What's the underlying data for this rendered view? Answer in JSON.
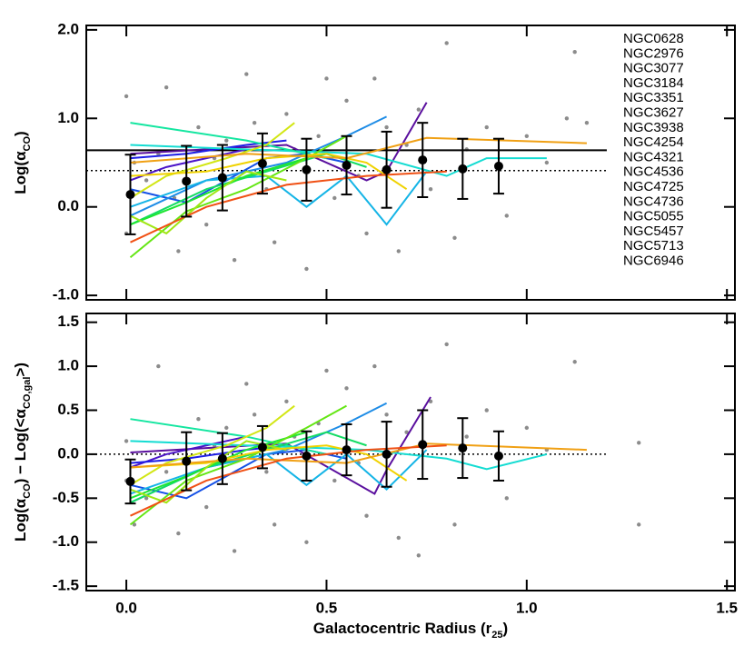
{
  "chart_data": [
    {
      "type": "line",
      "ylabel": [
        "Log(α",
        "CO",
        ")"
      ],
      "xlim": [
        -0.1,
        1.52
      ],
      "ylim": [
        -1.05,
        2.05
      ],
      "xticks": [
        0,
        0.5,
        1,
        1.5
      ],
      "yticks": [
        {
          "value": 2,
          "label": "2.0"
        },
        {
          "value": 1,
          "label": "1.0"
        },
        {
          "value": 0,
          "label": "0.0"
        },
        {
          "value": -1,
          "label": "-1.0"
        }
      ],
      "hlines": [
        {
          "y": 0.64,
          "style": "solid",
          "xmax": 1.2
        },
        {
          "y": 0.41,
          "style": "dotted",
          "xmax": 1.2
        }
      ],
      "points": {
        "color": "#8c8c8c",
        "x": [
          0.0,
          0.0,
          0.02,
          0.05,
          0.08,
          0.1,
          0.12,
          0.13,
          0.18,
          0.2,
          0.22,
          0.25,
          0.27,
          0.3,
          0.32,
          0.35,
          0.37,
          0.4,
          0.42,
          0.45,
          0.48,
          0.5,
          0.52,
          0.55,
          0.58,
          0.6,
          0.62,
          0.65,
          0.68,
          0.7,
          0.73,
          0.76,
          0.8,
          0.82,
          0.85,
          0.9,
          0.95,
          1.0,
          1.05,
          1.1,
          1.15,
          1.12
        ],
        "values": [
          1.25,
          -0.3,
          0.5,
          0.3,
          0.6,
          1.35,
          0.1,
          -0.5,
          0.9,
          -0.2,
          0.55,
          0.75,
          -0.6,
          1.5,
          0.95,
          0.2,
          -0.4,
          1.05,
          0.65,
          -0.7,
          0.8,
          1.45,
          0.1,
          1.2,
          0.35,
          -0.3,
          1.45,
          0.9,
          -0.5,
          0.7,
          1.1,
          0.2,
          1.85,
          -0.35,
          0.65,
          0.9,
          -0.1,
          0.8,
          0.5,
          1.0,
          0.95,
          1.75
        ]
      },
      "means": {
        "color": "#000000",
        "x": [
          0.01,
          0.15,
          0.24,
          0.34,
          0.45,
          0.55,
          0.65,
          0.74,
          0.84,
          0.93
        ],
        "values": [
          0.14,
          0.29,
          0.33,
          0.49,
          0.42,
          0.47,
          0.42,
          0.53,
          0.43,
          0.46
        ],
        "errors": [
          0.45,
          0.4,
          0.37,
          0.34,
          0.35,
          0.33,
          0.43,
          0.42,
          0.34,
          0.31
        ]
      },
      "series": [
        {
          "name": "NGC0628",
          "color": "#5a0f9e",
          "x": [
            0.01,
            0.2,
            0.4,
            0.6,
            0.65,
            0.75
          ],
          "values": [
            0.6,
            0.65,
            0.7,
            0.3,
            0.4,
            1.18
          ]
        },
        {
          "name": "NGC2976",
          "color": "#4b14c8",
          "x": [
            0.01,
            0.1,
            0.2,
            0.3
          ],
          "values": [
            0.3,
            0.45,
            0.55,
            0.65
          ]
        },
        {
          "name": "NGC3077",
          "color": "#1e1ee6",
          "x": [
            0.01,
            0.15,
            0.3,
            0.4
          ],
          "values": [
            0.55,
            0.6,
            0.7,
            0.75
          ]
        },
        {
          "name": "NGC3184",
          "color": "#1450e6",
          "x": [
            0.01,
            0.15,
            0.25,
            0.35,
            0.45,
            0.55
          ],
          "values": [
            0.2,
            0.05,
            0.3,
            0.55,
            0.6,
            0.5
          ]
        },
        {
          "name": "NGC3351",
          "color": "#1e8ce6",
          "x": [
            0.01,
            0.2,
            0.4,
            0.55,
            0.65
          ],
          "values": [
            -0.1,
            0.3,
            0.5,
            0.8,
            1.02
          ]
        },
        {
          "name": "NGC3627",
          "color": "#14b4e6",
          "x": [
            0.01,
            0.2,
            0.35,
            0.45,
            0.55,
            0.65,
            0.75
          ],
          "values": [
            0.0,
            0.3,
            0.35,
            0.0,
            0.35,
            -0.2,
            0.4
          ]
        },
        {
          "name": "NGC3938",
          "color": "#14dcd2",
          "x": [
            0.01,
            0.3,
            0.6,
            0.8,
            0.9,
            1.05
          ],
          "values": [
            0.7,
            0.65,
            0.6,
            0.35,
            0.55,
            0.55
          ]
        },
        {
          "name": "NGC4254",
          "color": "#14e6a0",
          "x": [
            0.01,
            0.3,
            0.5
          ],
          "values": [
            0.95,
            0.75,
            0.55
          ]
        },
        {
          "name": "NGC4321",
          "color": "#14dc64",
          "x": [
            0.01,
            0.2,
            0.35,
            0.5,
            0.6
          ],
          "values": [
            -0.2,
            0.2,
            0.4,
            0.6,
            0.45
          ]
        },
        {
          "name": "NGC4536",
          "color": "#1ee632",
          "x": [
            0.01,
            0.15,
            0.3,
            0.45
          ],
          "values": [
            -0.2,
            0.05,
            0.35,
            0.55
          ]
        },
        {
          "name": "NGC4725",
          "color": "#64e614",
          "x": [
            0.01,
            0.15,
            0.3,
            0.45,
            0.55
          ],
          "values": [
            -0.57,
            -0.05,
            0.2,
            0.55,
            0.8
          ]
        },
        {
          "name": "NGC4736",
          "color": "#a0e614",
          "x": [
            0.01,
            0.1,
            0.2,
            0.3,
            0.4
          ],
          "values": [
            -0.1,
            -0.3,
            0.1,
            0.4,
            0.3
          ]
        },
        {
          "name": "NGC5055",
          "color": "#d2e614",
          "x": [
            0.01,
            0.1,
            0.25,
            0.35,
            0.42
          ],
          "values": [
            0.1,
            0.35,
            0.55,
            0.7,
            0.95
          ]
        },
        {
          "name": "NGC5457",
          "color": "#f0d200",
          "x": [
            0.01,
            0.2,
            0.35,
            0.5,
            0.6,
            0.7
          ],
          "values": [
            0.35,
            0.4,
            0.55,
            0.6,
            0.5,
            0.2
          ]
        },
        {
          "name": "NGC5713",
          "color": "#f0a014",
          "x": [
            0.01,
            0.3,
            0.55,
            0.75,
            1.15
          ],
          "values": [
            0.5,
            0.6,
            0.55,
            0.78,
            0.72
          ]
        },
        {
          "name": "NGC6946",
          "color": "#f05014",
          "x": [
            0.01,
            0.2,
            0.4,
            0.6,
            0.8
          ],
          "values": [
            -0.4,
            0.0,
            0.25,
            0.35,
            0.4
          ]
        }
      ]
    },
    {
      "type": "line",
      "ylabel": [
        "Log(α",
        "CO",
        ")  −  Log(<α",
        "CO,gal",
        ">)"
      ],
      "xlabel": [
        "Galactocentric Radius (r",
        "25",
        ")"
      ],
      "xlim": [
        -0.1,
        1.52
      ],
      "ylim": [
        -1.55,
        1.6
      ],
      "xticks": [
        {
          "value": 0,
          "label": "0.0"
        },
        {
          "value": 0.5,
          "label": "0.5"
        },
        {
          "value": 1,
          "label": "1.0"
        },
        {
          "value": 1.5,
          "label": "1.5"
        }
      ],
      "yticks": [
        {
          "value": 1.5,
          "label": "1.5"
        },
        {
          "value": 1,
          "label": "1.0"
        },
        {
          "value": 0.5,
          "label": "0.5"
        },
        {
          "value": 0,
          "label": "0.0"
        },
        {
          "value": -0.5,
          "label": "-0.5"
        },
        {
          "value": -1,
          "label": "-1.0"
        },
        {
          "value": -1.5,
          "label": "-1.5"
        }
      ],
      "hlines": [
        {
          "y": 0,
          "style": "dotted",
          "xmax": 1.2
        }
      ],
      "points": {
        "color": "#8c8c8c",
        "x": [
          0.0,
          0.0,
          0.02,
          0.05,
          0.08,
          0.1,
          0.13,
          0.18,
          0.2,
          0.22,
          0.25,
          0.27,
          0.3,
          0.32,
          0.35,
          0.37,
          0.4,
          0.42,
          0.45,
          0.48,
          0.5,
          0.52,
          0.55,
          0.58,
          0.6,
          0.62,
          0.65,
          0.68,
          0.7,
          0.73,
          0.76,
          0.8,
          0.82,
          0.85,
          0.9,
          0.95,
          1.0,
          1.05,
          1.12,
          1.28,
          1.28
        ],
        "values": [
          -0.3,
          0.15,
          -0.8,
          -0.5,
          1.0,
          -0.2,
          -0.9,
          0.4,
          -0.6,
          0.1,
          0.3,
          -1.1,
          0.8,
          0.45,
          -0.2,
          -0.8,
          0.6,
          0.2,
          -1.0,
          0.35,
          0.95,
          -0.3,
          0.75,
          -0.1,
          -0.7,
          1.0,
          0.45,
          -0.95,
          0.25,
          -1.15,
          0.6,
          1.25,
          -0.8,
          0.2,
          0.5,
          -0.5,
          0.3,
          0.05,
          1.05,
          -0.8,
          0.13
        ]
      },
      "means": {
        "color": "#000000",
        "x": [
          0.01,
          0.15,
          0.24,
          0.34,
          0.45,
          0.55,
          0.65,
          0.74,
          0.84,
          0.93
        ],
        "values": [
          -0.31,
          -0.08,
          -0.05,
          0.08,
          -0.02,
          0.05,
          0.0,
          0.11,
          0.07,
          -0.02
        ],
        "errors": [
          0.25,
          0.33,
          0.29,
          0.24,
          0.28,
          0.29,
          0.37,
          0.39,
          0.34,
          0.28
        ]
      },
      "series": [
        {
          "color": "#5a0f9e",
          "x": [
            0.01,
            0.2,
            0.4,
            0.62,
            0.65,
            0.76
          ],
          "values": [
            0.02,
            0.07,
            0.12,
            -0.45,
            -0.18,
            0.65
          ]
        },
        {
          "color": "#4b14c8",
          "x": [
            0.01,
            0.1,
            0.2,
            0.3
          ],
          "values": [
            -0.15,
            0.0,
            0.1,
            0.2
          ]
        },
        {
          "color": "#1e1ee6",
          "x": [
            0.01,
            0.15,
            0.3,
            0.4
          ],
          "values": [
            -0.1,
            -0.05,
            0.05,
            0.1
          ]
        },
        {
          "color": "#1450e6",
          "x": [
            0.01,
            0.15,
            0.25,
            0.35,
            0.45,
            0.55
          ],
          "values": [
            -0.35,
            -0.5,
            -0.25,
            0.0,
            0.05,
            -0.05
          ]
        },
        {
          "color": "#1e8ce6",
          "x": [
            0.01,
            0.2,
            0.4,
            0.55,
            0.65
          ],
          "values": [
            -0.55,
            -0.15,
            0.05,
            0.35,
            0.58
          ]
        },
        {
          "color": "#14b4e6",
          "x": [
            0.01,
            0.2,
            0.35,
            0.45,
            0.55,
            0.65,
            0.75
          ],
          "values": [
            -0.45,
            -0.15,
            0.0,
            -0.35,
            0.0,
            -0.4,
            0.05
          ]
        },
        {
          "color": "#14dcd2",
          "x": [
            0.01,
            0.3,
            0.6,
            0.8,
            0.9,
            1.05
          ],
          "values": [
            0.15,
            0.1,
            0.05,
            -0.05,
            -0.17,
            0.0
          ]
        },
        {
          "color": "#14e6a0",
          "x": [
            0.01,
            0.3,
            0.5
          ],
          "values": [
            0.4,
            0.2,
            0.0
          ]
        },
        {
          "color": "#14dc64",
          "x": [
            0.01,
            0.2,
            0.35,
            0.5,
            0.6
          ],
          "values": [
            -0.55,
            -0.15,
            0.05,
            0.25,
            0.1
          ]
        },
        {
          "color": "#1ee632",
          "x": [
            0.01,
            0.15,
            0.3,
            0.45
          ],
          "values": [
            -0.5,
            -0.25,
            0.05,
            0.25
          ]
        },
        {
          "color": "#64e614",
          "x": [
            0.01,
            0.15,
            0.3,
            0.45,
            0.55
          ],
          "values": [
            -0.8,
            -0.3,
            -0.05,
            0.3,
            0.55
          ]
        },
        {
          "color": "#a0e614",
          "x": [
            0.01,
            0.1,
            0.2,
            0.3,
            0.4
          ],
          "values": [
            -0.4,
            -0.55,
            -0.15,
            0.15,
            0.05
          ]
        },
        {
          "color": "#d2e614",
          "x": [
            0.01,
            0.1,
            0.25,
            0.35,
            0.42
          ],
          "values": [
            -0.35,
            -0.1,
            0.1,
            0.3,
            0.55
          ]
        },
        {
          "color": "#f0d200",
          "x": [
            0.01,
            0.2,
            0.35,
            0.5,
            0.6,
            0.7
          ],
          "values": [
            -0.15,
            -0.1,
            0.05,
            0.1,
            0.0,
            -0.3
          ]
        },
        {
          "color": "#f0a014",
          "x": [
            0.01,
            0.3,
            0.55,
            0.75,
            1.15
          ],
          "values": [
            -0.15,
            -0.05,
            -0.1,
            0.12,
            0.05
          ]
        },
        {
          "color": "#f05014",
          "x": [
            0.01,
            0.2,
            0.4,
            0.6,
            0.8
          ],
          "values": [
            -0.7,
            -0.3,
            -0.05,
            0.05,
            0.1
          ]
        }
      ]
    }
  ]
}
